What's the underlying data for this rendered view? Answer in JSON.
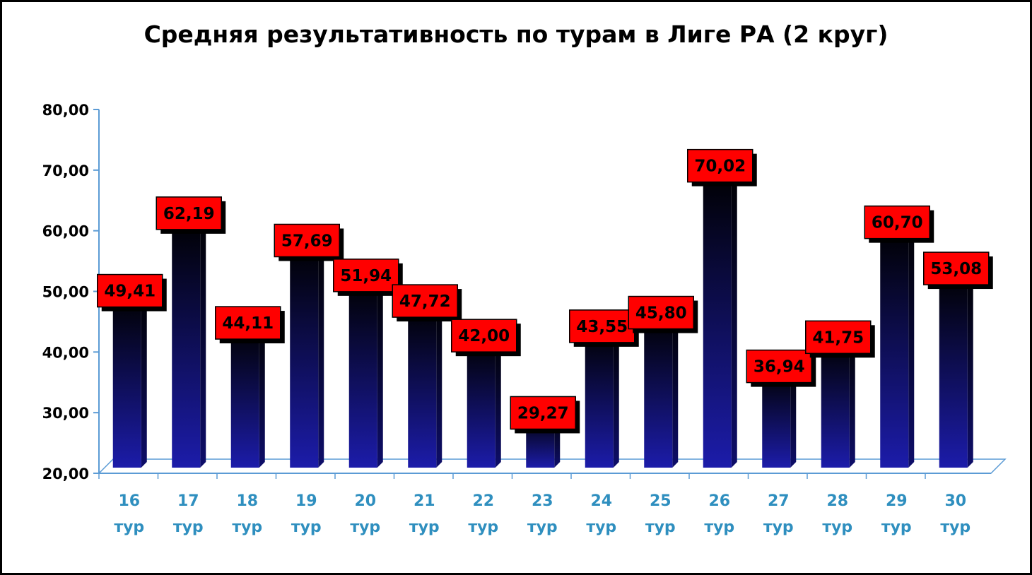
{
  "chart_data": {
    "type": "bar",
    "title": "Средняя результативность по турам в Лиге РА (2 круг)",
    "xlabel": "",
    "ylabel": "",
    "categories": [
      [
        "16",
        "тур"
      ],
      [
        "17",
        "тур"
      ],
      [
        "18",
        "тур"
      ],
      [
        "19",
        "тур"
      ],
      [
        "20",
        "тур"
      ],
      [
        "21",
        "тур"
      ],
      [
        "22",
        "тур"
      ],
      [
        "23",
        "тур"
      ],
      [
        "24",
        "тур"
      ],
      [
        "25",
        "тур"
      ],
      [
        "26",
        "тур"
      ],
      [
        "27",
        "тур"
      ],
      [
        "28",
        "тур"
      ],
      [
        "29",
        "тур"
      ],
      [
        "30",
        "тур"
      ]
    ],
    "values": [
      49.41,
      62.19,
      44.11,
      57.69,
      51.94,
      47.72,
      42.0,
      29.27,
      43.55,
      45.8,
      70.02,
      36.94,
      41.75,
      60.7,
      53.08
    ],
    "data_labels": [
      "49,41",
      "62,19",
      "44,11",
      "57,69",
      "51,94",
      "47,72",
      "42,00",
      "29,27",
      "43,55",
      "45,80",
      "70,02",
      "36,94",
      "41,75",
      "60,70",
      "53,08"
    ],
    "ylim": [
      20,
      80
    ],
    "yticks": [
      20,
      30,
      40,
      50,
      60,
      70,
      80
    ],
    "ytick_labels": [
      "20,00",
      "30,00",
      "40,00",
      "50,00",
      "60,00",
      "70,00",
      "80,00"
    ],
    "grid": false,
    "legend": "none",
    "colors": {
      "bar_top": "#000000",
      "bar_bottom": "#1a1aa0",
      "label_fill": "#ff0000",
      "x_tick_text": "#2f8fbf",
      "axis": "#5b9bd5"
    }
  }
}
